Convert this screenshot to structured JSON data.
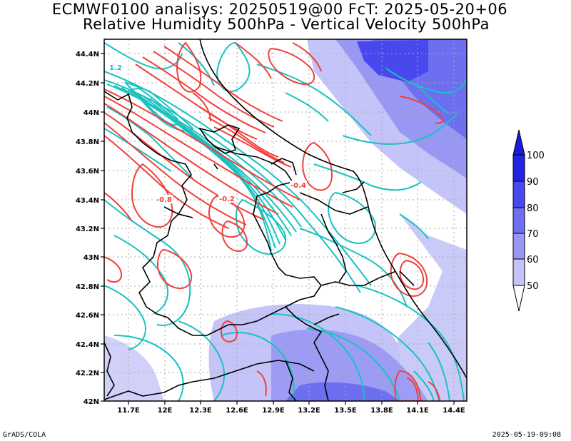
{
  "title_line1": "ECMWF0100 analisys: 20250519@00 FcT: 2025-05-20+06",
  "title_line2": "Relative Humidity 500hPa - Vertical Velocity 500hPa",
  "footer_left": "GrADS/COLA",
  "footer_right": "2025-05-19-09:08",
  "map": {
    "lat_ticks": [
      "44.4N",
      "44.2N",
      "44N",
      "43.8N",
      "43.6N",
      "43.4N",
      "43.2N",
      "43N",
      "42.8N",
      "42.6N",
      "42.4N",
      "42.2N",
      "42N"
    ],
    "lon_ticks": [
      "11.7E",
      "12E",
      "12.3E",
      "12.6E",
      "12.9E",
      "13.2E",
      "13.5E",
      "13.8E",
      "14.1E",
      "14.4E"
    ],
    "contour_labels": [
      {
        "text": "1.2",
        "color": "#19c2c0"
      },
      {
        "text": "-0.8",
        "color": "#f0403c"
      },
      {
        "text": "-0.2",
        "color": "#f0403c"
      },
      {
        "text": "-0.4",
        "color": "#f0403c"
      }
    ]
  },
  "colorbar": {
    "labels": [
      "100",
      "90",
      "80",
      "70",
      "60",
      "50"
    ],
    "colors": [
      "#2323e6",
      "#4848ec",
      "#6e6ef0",
      "#9898f4",
      "#c4c4f8",
      "#ffffff"
    ]
  },
  "colors": {
    "rising_contours": "#f0403c",
    "sinking_contours": "#19c2c0",
    "coast_borders": "#000000"
  }
}
